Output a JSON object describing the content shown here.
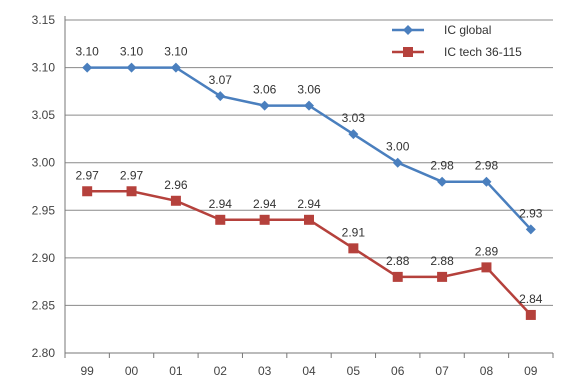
{
  "chart_data": {
    "type": "line",
    "categories": [
      "99",
      "00",
      "01",
      "02",
      "03",
      "04",
      "05",
      "06",
      "07",
      "08",
      "09"
    ],
    "ylim": [
      2.8,
      3.15
    ],
    "yticks": [
      "2.80",
      "2.85",
      "2.90",
      "2.95",
      "3.00",
      "3.05",
      "3.10",
      "3.15"
    ],
    "grid": true,
    "legend": "top-right",
    "series": [
      {
        "name": "IC global",
        "color": "#4a7fbe",
        "marker": "diamond",
        "values": [
          3.1,
          3.1,
          3.1,
          3.07,
          3.06,
          3.06,
          3.03,
          3.0,
          2.98,
          2.98,
          2.93
        ],
        "labels": [
          "3.10",
          "3.10",
          "3.10",
          "3.07",
          "3.06",
          "3.06",
          "3.03",
          "3.00",
          "2.98",
          "2.98",
          "2.93"
        ]
      },
      {
        "name": "IC tech 36-115",
        "color": "#b5413c",
        "marker": "square",
        "values": [
          2.97,
          2.97,
          2.96,
          2.94,
          2.94,
          2.94,
          2.91,
          2.88,
          2.88,
          2.89,
          2.84
        ],
        "labels": [
          "2.97",
          "2.97",
          "2.96",
          "2.94",
          "2.94",
          "2.94",
          "2.91",
          "2.88",
          "2.88",
          "2.89",
          "2.84"
        ]
      }
    ]
  }
}
